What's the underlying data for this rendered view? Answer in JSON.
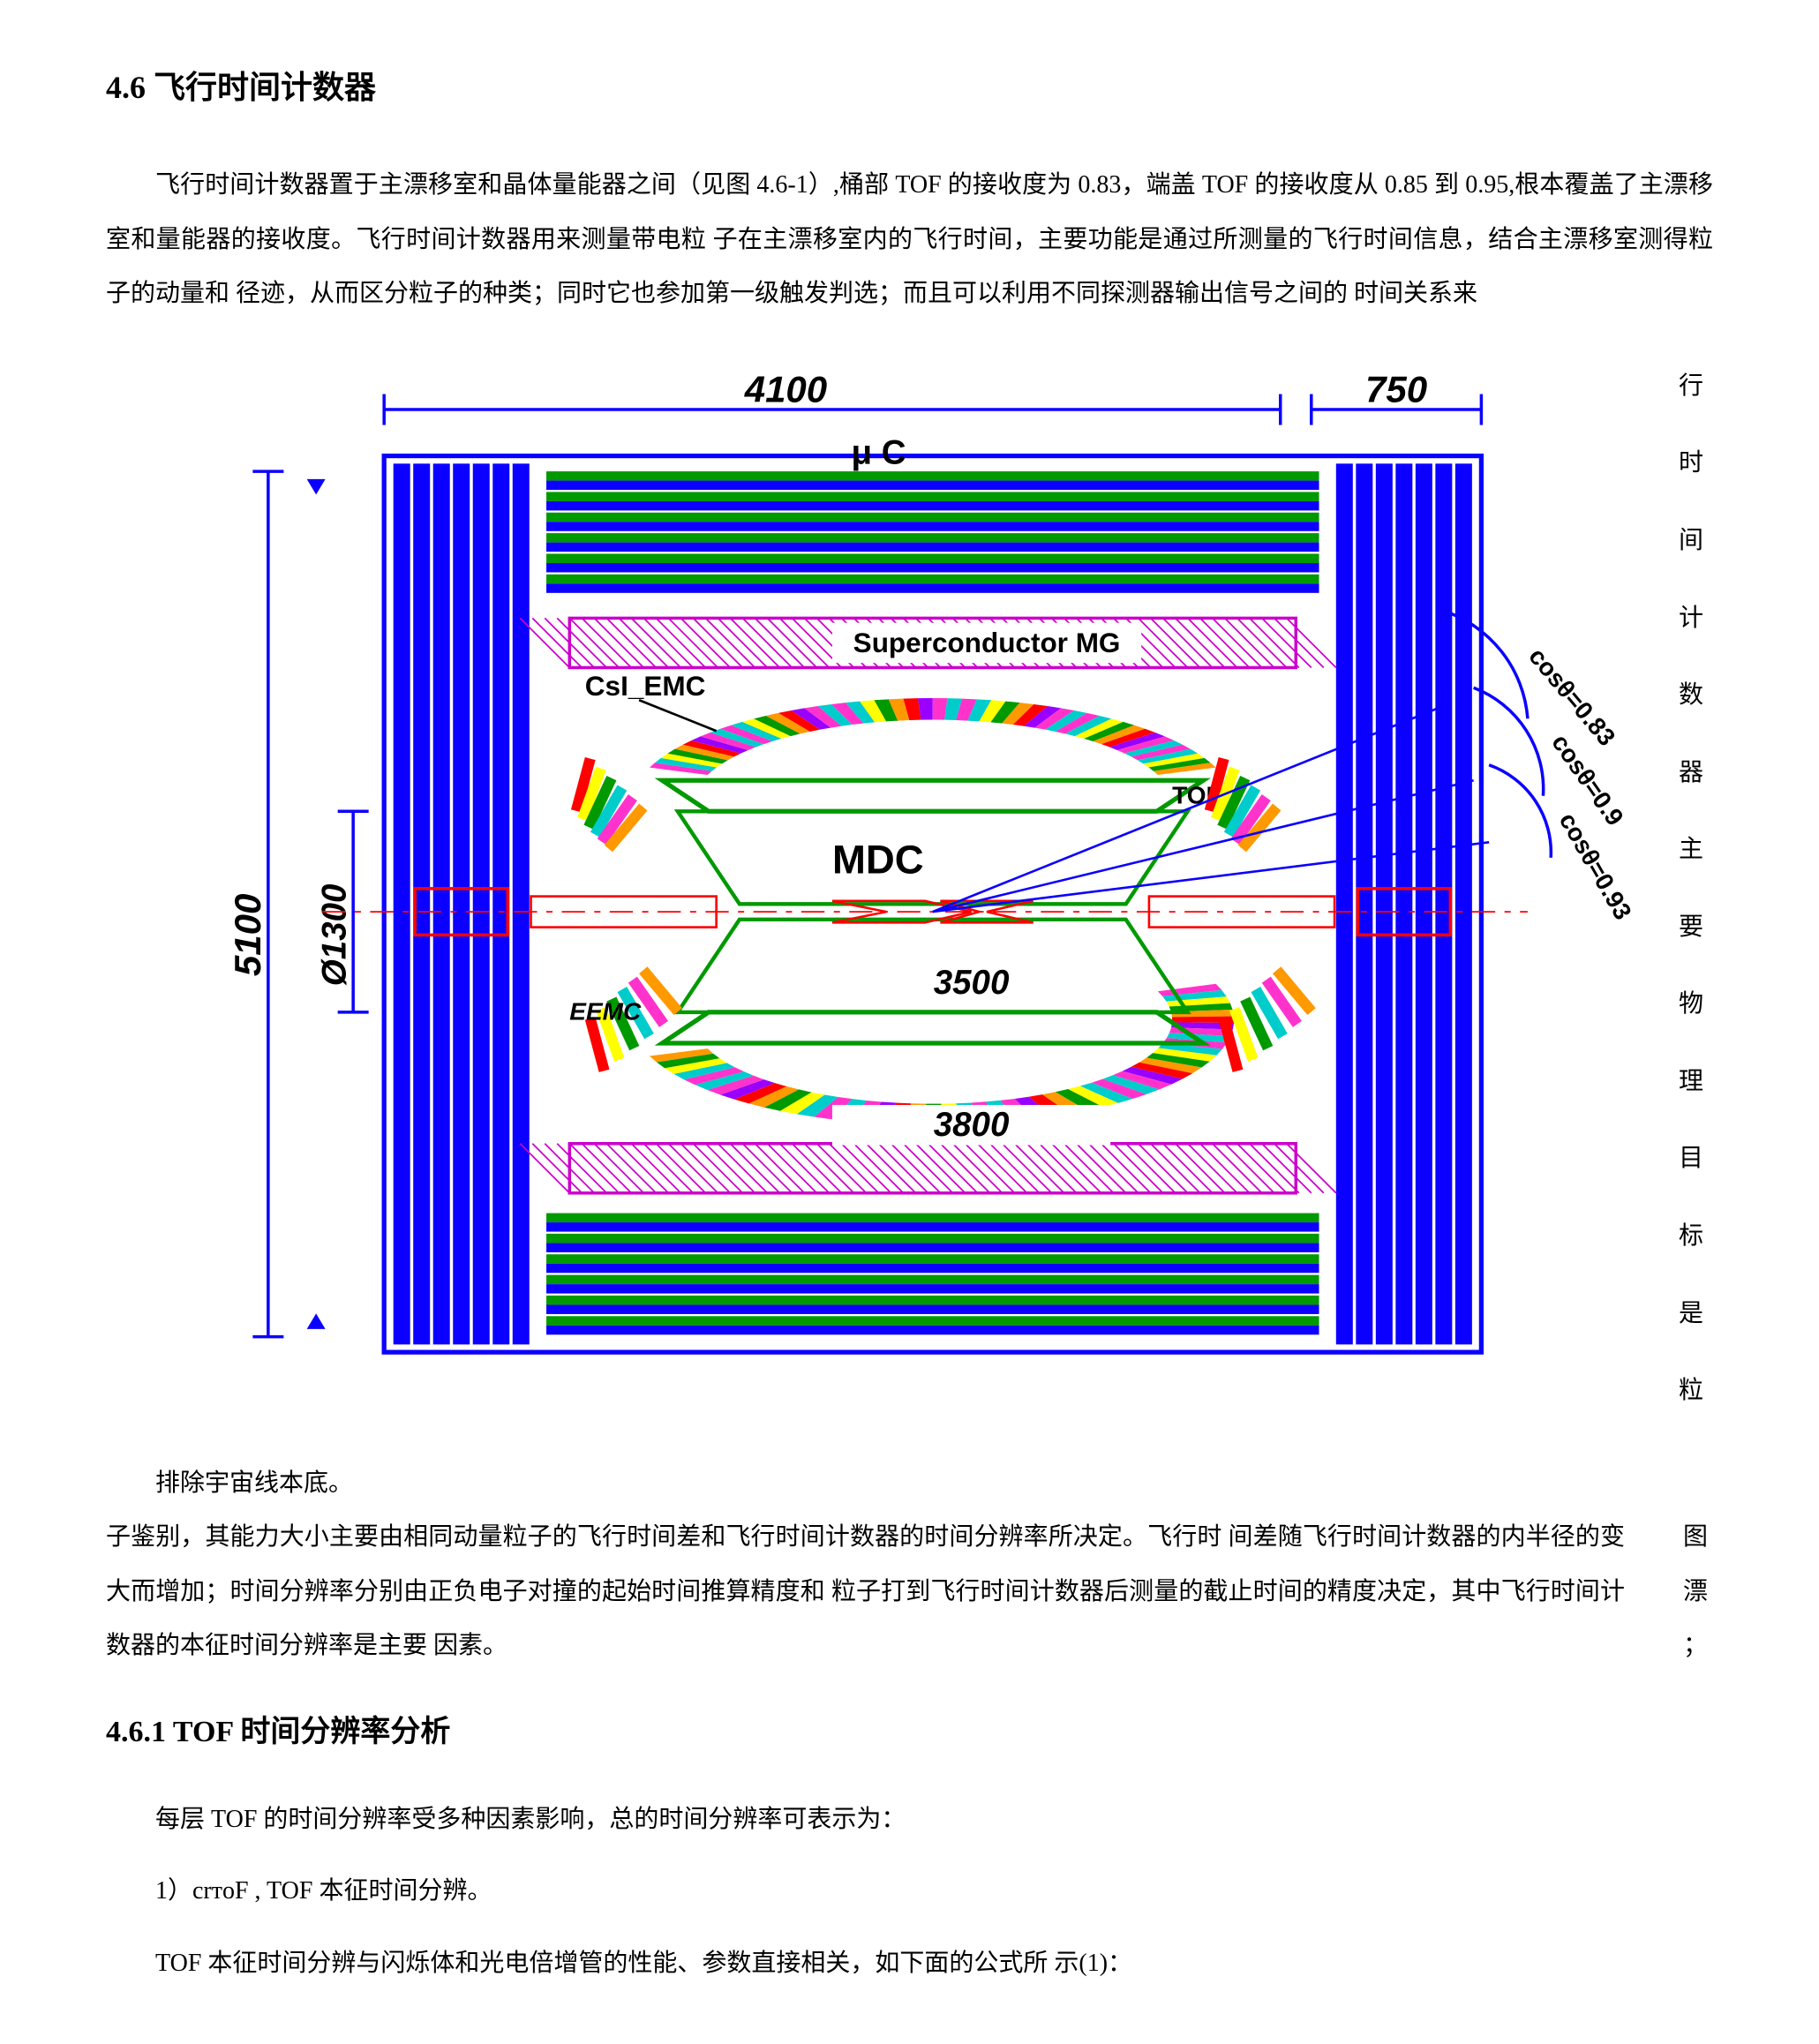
{
  "heading_main": "4.6 飞行时间计数器",
  "para1": "飞行时间计数器置于主漂移室和晶体量能器之间（见图 4.6-1）,桶部 TOF 的接收度为 0.83，端盖 TOF 的接收度从 0.85 到 0.95,根本覆盖了主漂移室和量能器的接收度。飞行时间计数器用来测量带电粒  子在主漂移室内的飞行时间，主要功能是通过所测量的飞行时间信息，结合主漂移室测得粒子的动量和  径迹，从而区分粒子的种类；同时它也参加第一级触发判选；而且可以利用不同探测器输出信号之间的  时间关系来",
  "insert_text": "排除宇宙线本底。",
  "vstrip": [
    "行",
    "时",
    "间",
    "计",
    "数",
    "器",
    "主",
    "要",
    "物",
    "理",
    "目",
    "标",
    "是",
    "粒"
  ],
  "para2": "子鉴别，其能力大小主要由相同动量粒子的飞行时间差和飞行时间计数器的时间分辨率所决定。飞行时  间差随飞行时间计数器的内半径的变大而增加；时间分辨率分别由正负电子对撞的起始时间推算精度和  粒子打到飞行时间计数器后测量的截止时间的精度决定，其中飞行时间计数器的本征时间分辨率是主要  因素。",
  "rfloat": [
    "图",
    "漂",
    "；"
  ],
  "heading_sub": "4.6.1 TOF 时间分辨率分析",
  "para3": "每层 TOF 的时间分辨率受多种因素影响，总的时间分辨率可表示为：",
  "item1": "1）crтoF , TOF 本征时间分辨。",
  "para4": "TOF 本征时间分辨与闪烁体和光电倍增管的性能、参数直接相关，如下面的公式所  示(1)：",
  "figure": {
    "type": "diagram",
    "background_color": "#ffffff",
    "main_blue": "#0b00ff",
    "green": "#009900",
    "magenta": "#ff33cc",
    "red": "#ff0000",
    "cyan": "#00cccc",
    "yellow": "#ffff00",
    "orange": "#ff9900",
    "black": "#000000",
    "hatch_stroke": "#cc00cc",
    "dim_label_4100": "4100",
    "dim_label_750": "750",
    "dim_label_5100": "5100",
    "dim_label_1300": "Ø1300",
    "dim_label_3500": "3500",
    "dim_label_3800": "3800",
    "label_uC": "μ C",
    "label_super": "Superconductor MG",
    "label_csi": "CsI_EMC",
    "label_tof": "TOF",
    "label_mdc": "MDC",
    "label_eemc": "EEMC",
    "label_cos083": "cosθ=0.83",
    "label_cos09": "cosθ=0.9",
    "label_cos093": "cosθ=0.93"
  }
}
